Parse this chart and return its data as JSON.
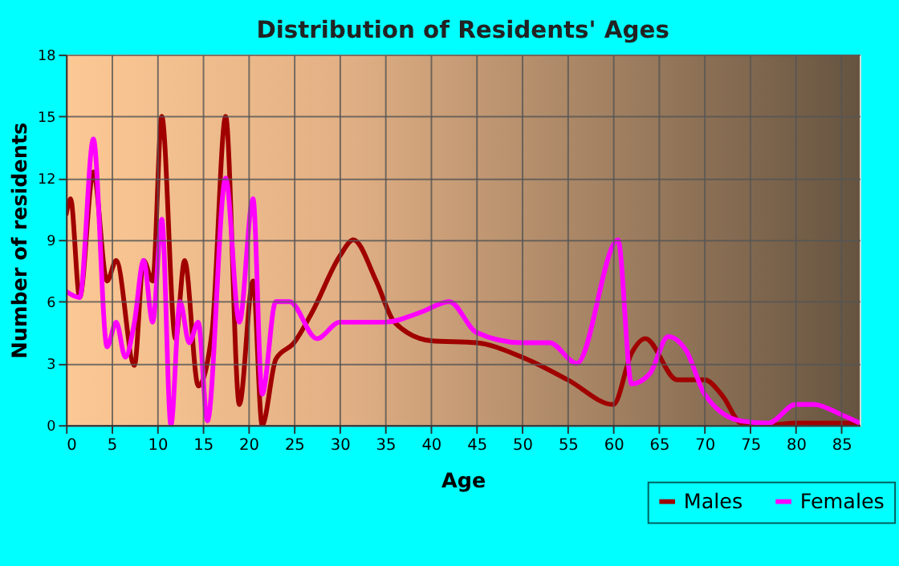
{
  "chart_data": {
    "type": "line",
    "title": "Distribution of Residents' Ages",
    "xlabel": "Age",
    "ylabel": "Number of residents",
    "xlim": [
      0,
      87
    ],
    "xticks": [
      0,
      5,
      10,
      15,
      20,
      25,
      30,
      35,
      40,
      45,
      50,
      55,
      60,
      65,
      70,
      75,
      80,
      85
    ],
    "ylim": [
      0,
      18
    ],
    "yticks": [
      0,
      3,
      6,
      9,
      12,
      15,
      18
    ],
    "grid": true,
    "legend": "bottom right",
    "line_style": "solid",
    "marker": "none",
    "series": [
      {
        "name": "Males",
        "color": "#a00000",
        "x": [
          0,
          0.5,
          1.5,
          3,
          4.5,
          5.5,
          7.5,
          8.5,
          9.5,
          10.5,
          12,
          13,
          14.5,
          16,
          17.5,
          19,
          20.5,
          21.5,
          23,
          25,
          27,
          30,
          31.5,
          34,
          36,
          40,
          45,
          50,
          55,
          60,
          62,
          63.5,
          67,
          70,
          72,
          74,
          77,
          80,
          85,
          87
        ],
        "values": [
          10.2,
          11,
          6.2,
          12.3,
          7,
          8,
          2.9,
          8,
          7,
          15,
          4.2,
          8,
          1.9,
          4.5,
          15,
          1,
          7,
          0,
          3.2,
          4,
          5.5,
          8.2,
          9,
          7,
          5,
          4.1,
          4,
          3.3,
          2.2,
          1,
          3.5,
          4.2,
          2.2,
          2.2,
          1.4,
          0.1,
          0,
          0.1,
          0.1,
          0.1
        ]
      },
      {
        "name": "Females",
        "color": "#ff00ff",
        "x": [
          0,
          1.5,
          3,
          4.5,
          5.5,
          6.5,
          7.5,
          8.5,
          9.5,
          10.5,
          11.5,
          12.5,
          13.5,
          14.5,
          15.5,
          17.5,
          19,
          20.5,
          21.5,
          23,
          24.5,
          27.5,
          30,
          35,
          39,
          42,
          45,
          50,
          53,
          56,
          60.5,
          62,
          64,
          66,
          68,
          70,
          74,
          77,
          80,
          82,
          85,
          87
        ],
        "values": [
          6.5,
          6.2,
          13.9,
          3.8,
          5,
          3.3,
          5,
          8,
          5,
          10,
          0,
          6,
          4,
          5,
          0.2,
          12,
          5,
          11,
          1.5,
          6,
          6,
          4.2,
          5,
          5,
          5.5,
          6,
          4.5,
          4,
          4,
          3,
          9,
          2,
          2.5,
          4.3,
          3.6,
          1.5,
          0.2,
          0.1,
          1,
          1,
          0.5,
          0.1
        ]
      }
    ]
  }
}
